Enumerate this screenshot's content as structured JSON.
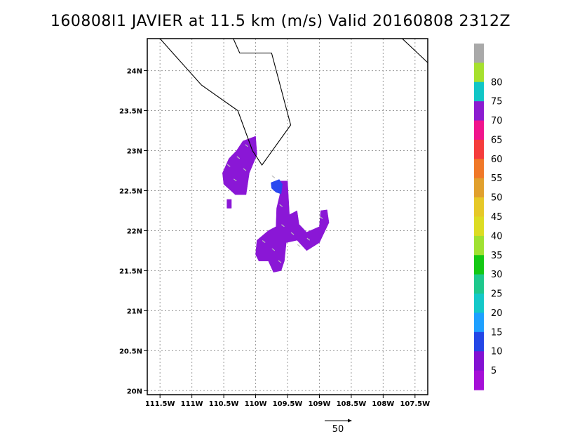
{
  "title": "160808I1 JAVIER at 11.5 km (m/s) Valid 20160808 2312Z",
  "map": {
    "lon_range": [
      -111.7,
      -107.3
    ],
    "lat_range": [
      19.95,
      24.4
    ],
    "lon_ticks": [
      {
        "value": -111.5,
        "label": "111.5W"
      },
      {
        "value": -111.0,
        "label": "111W"
      },
      {
        "value": -110.5,
        "label": "110.5W"
      },
      {
        "value": -110.0,
        "label": "110W"
      },
      {
        "value": -109.5,
        "label": "109.5W"
      },
      {
        "value": -109.0,
        "label": "109W"
      },
      {
        "value": -108.5,
        "label": "108.5W"
      },
      {
        "value": -108.0,
        "label": "108W"
      },
      {
        "value": -107.5,
        "label": "107.5W"
      }
    ],
    "lat_ticks": [
      {
        "value": 20.0,
        "label": "20N"
      },
      {
        "value": 20.5,
        "label": "20.5N"
      },
      {
        "value": 21.0,
        "label": "21N"
      },
      {
        "value": 21.5,
        "label": "21.5N"
      },
      {
        "value": 22.0,
        "label": "22N"
      },
      {
        "value": 22.5,
        "label": "22.5N"
      },
      {
        "value": 23.0,
        "label": "23N"
      },
      {
        "value": 23.5,
        "label": "23.5N"
      },
      {
        "value": 24.0,
        "label": "24N"
      }
    ],
    "grid": true,
    "coastlines": [
      [
        [
          -111.5,
          24.4
        ],
        [
          -111.3,
          24.22
        ],
        [
          -110.85,
          23.82
        ],
        [
          -110.28,
          23.5
        ],
        [
          -110.05,
          23.0
        ],
        [
          -109.9,
          22.82
        ],
        [
          -109.45,
          23.32
        ],
        [
          -109.75,
          24.22
        ],
        [
          -110.25,
          24.22
        ],
        [
          -110.35,
          24.4
        ]
      ],
      [
        [
          -107.7,
          24.4
        ],
        [
          -107.3,
          24.1
        ]
      ]
    ]
  },
  "wind_regions": [
    {
      "label": "western cluster",
      "color": "#8a17d6",
      "polygon": [
        [
          -110.52,
          22.72
        ],
        [
          -110.42,
          22.9
        ],
        [
          -110.3,
          23.0
        ],
        [
          -110.2,
          23.12
        ],
        [
          -110.0,
          23.18
        ],
        [
          -109.98,
          22.95
        ],
        [
          -110.1,
          22.72
        ],
        [
          -110.15,
          22.45
        ],
        [
          -110.32,
          22.45
        ],
        [
          -110.5,
          22.58
        ]
      ]
    },
    {
      "label": "isolated speck",
      "color": "#8a17d6",
      "polygon": [
        [
          -110.45,
          22.39
        ],
        [
          -110.38,
          22.39
        ],
        [
          -110.38,
          22.28
        ],
        [
          -110.45,
          22.28
        ]
      ]
    },
    {
      "label": "central band",
      "color": "#8a17d6",
      "polygon": [
        [
          -109.62,
          22.62
        ],
        [
          -109.5,
          22.62
        ],
        [
          -109.47,
          22.2
        ],
        [
          -109.35,
          22.25
        ],
        [
          -109.32,
          22.08
        ],
        [
          -109.2,
          21.98
        ],
        [
          -109.0,
          22.05
        ],
        [
          -108.98,
          22.25
        ],
        [
          -108.88,
          22.26
        ],
        [
          -108.85,
          22.1
        ],
        [
          -109.0,
          21.85
        ],
        [
          -109.2,
          21.75
        ],
        [
          -109.35,
          21.88
        ],
        [
          -109.52,
          21.85
        ],
        [
          -109.55,
          21.62
        ],
        [
          -109.6,
          21.5
        ],
        [
          -109.72,
          21.48
        ],
        [
          -109.8,
          21.62
        ],
        [
          -109.95,
          21.62
        ],
        [
          -110.0,
          21.7
        ],
        [
          -109.98,
          21.88
        ],
        [
          -109.8,
          22.0
        ],
        [
          -109.68,
          22.05
        ],
        [
          -109.67,
          22.28
        ],
        [
          -109.62,
          22.45
        ]
      ]
    },
    {
      "label": "peak core",
      "color": "#2a48f0",
      "polygon": [
        [
          -109.76,
          22.6
        ],
        [
          -109.63,
          22.64
        ],
        [
          -109.58,
          22.58
        ],
        [
          -109.6,
          22.46
        ],
        [
          -109.68,
          22.48
        ],
        [
          -109.75,
          22.53
        ]
      ]
    }
  ],
  "colorbar": {
    "entries": [
      {
        "color": "#a9a9a9",
        "label": ""
      },
      {
        "color": "#a6e02e",
        "label": "80"
      },
      {
        "color": "#11c6c6",
        "label": "75"
      },
      {
        "color": "#8b1cd0",
        "label": "70"
      },
      {
        "color": "#f0148c",
        "label": "65"
      },
      {
        "color": "#f53c3c",
        "label": "60"
      },
      {
        "color": "#f07828",
        "label": "55"
      },
      {
        "color": "#e1a02d",
        "label": "50"
      },
      {
        "color": "#e6c828",
        "label": "45"
      },
      {
        "color": "#dcdc23",
        "label": "40"
      },
      {
        "color": "#a0e132",
        "label": "35"
      },
      {
        "color": "#14c814",
        "label": "30"
      },
      {
        "color": "#1ec88c",
        "label": "25"
      },
      {
        "color": "#14c8c8",
        "label": "20"
      },
      {
        "color": "#1ea0ff",
        "label": "15"
      },
      {
        "color": "#2346e6",
        "label": "10"
      },
      {
        "color": "#8211d2",
        "label": "5"
      },
      {
        "color": "#a50fd7",
        "label": ""
      }
    ]
  },
  "vector_scale": {
    "label": "50"
  }
}
